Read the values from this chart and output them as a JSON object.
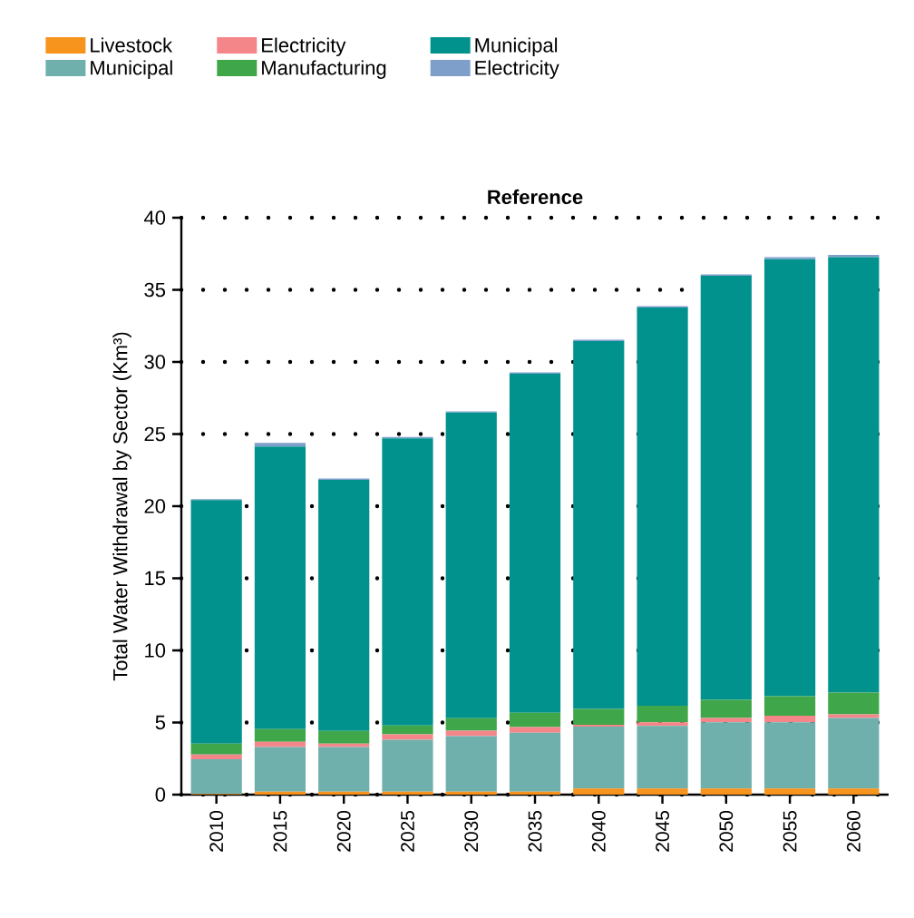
{
  "chart_data": {
    "type": "bar",
    "title": "Reference",
    "ylabel": "Total Water Withdrawal by Sector (Km³)",
    "categories": [
      "2010",
      "2015",
      "2020",
      "2025",
      "2030",
      "2035",
      "2040",
      "2045",
      "2050",
      "2055",
      "2060"
    ],
    "stacked": true,
    "ylim": [
      0,
      40
    ],
    "yticks": [
      0,
      5,
      10,
      15,
      20,
      25,
      30,
      35,
      40
    ],
    "grid": "y",
    "legend": "top left",
    "series": [
      {
        "name": "Livestock",
        "color": "#f7941d",
        "values": [
          0.05,
          0.2,
          0.2,
          0.2,
          0.2,
          0.2,
          0.42,
          0.42,
          0.42,
          0.42,
          0.42
        ]
      },
      {
        "name": "Municipal",
        "color": "#6fb0ad",
        "values": [
          2.4,
          3.1,
          3.1,
          3.6,
          3.85,
          4.1,
          4.3,
          4.35,
          4.6,
          4.6,
          4.9
        ]
      },
      {
        "name": "Electricity",
        "color": "#f4868a",
        "values": [
          0.33,
          0.37,
          0.24,
          0.38,
          0.38,
          0.38,
          0.12,
          0.25,
          0.3,
          0.45,
          0.25
        ]
      },
      {
        "name": "Manufacturing",
        "color": "#3fa64a",
        "values": [
          0.75,
          0.87,
          0.88,
          0.62,
          0.87,
          1.0,
          1.1,
          1.15,
          1.25,
          1.35,
          1.5
        ]
      },
      {
        "name": "Municipal",
        "color": "#02928e",
        "values": [
          16.9,
          19.6,
          17.4,
          19.9,
          21.2,
          23.5,
          25.5,
          27.6,
          29.4,
          30.3,
          30.2
        ]
      },
      {
        "name": "Electricity",
        "color": "#7f9fcb",
        "values": [
          0.05,
          0.25,
          0.1,
          0.1,
          0.08,
          0.1,
          0.1,
          0.1,
          0.1,
          0.15,
          0.15
        ]
      }
    ]
  }
}
